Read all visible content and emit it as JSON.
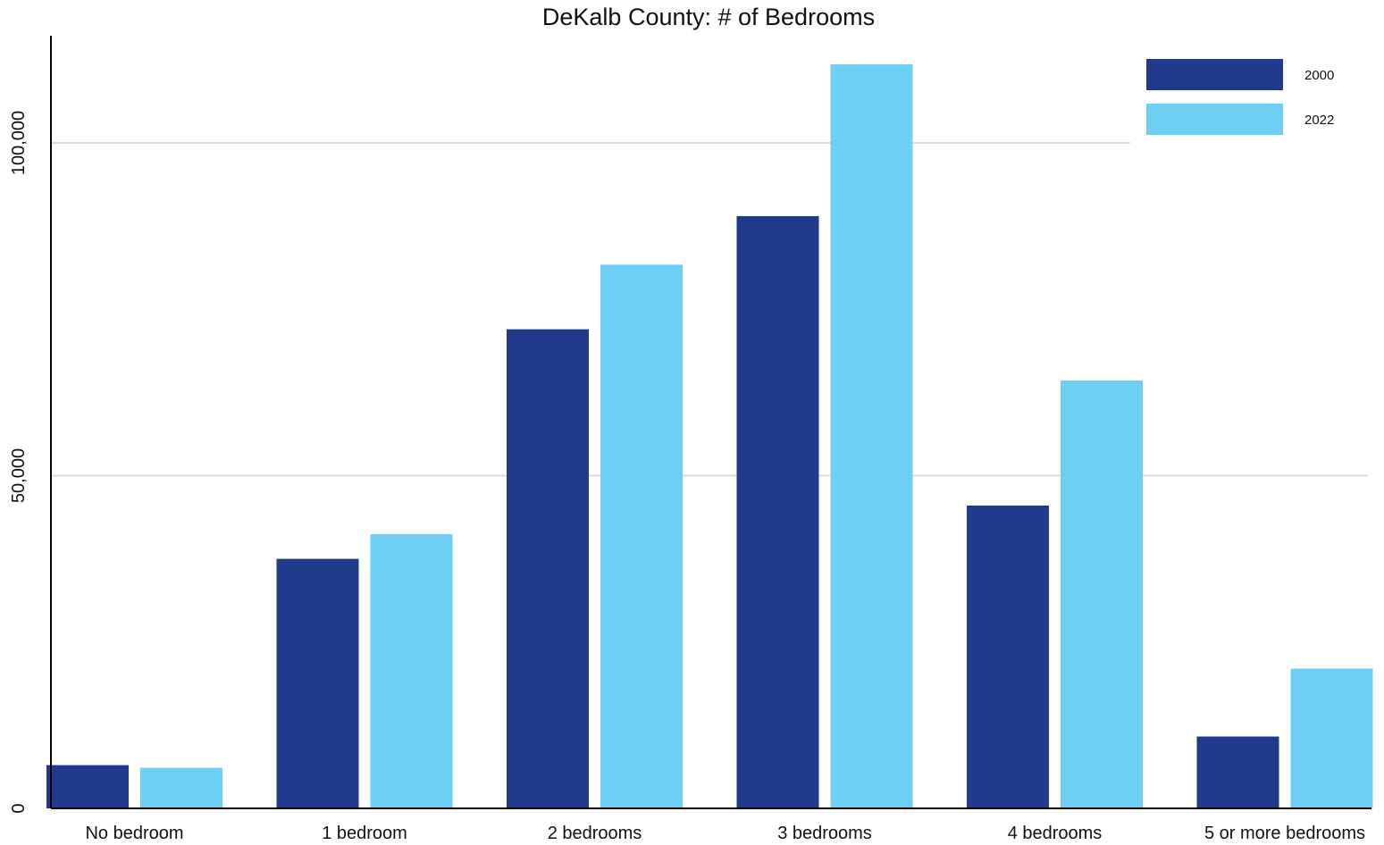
{
  "chart_data": {
    "type": "bar",
    "title": "DeKalb County: # of Bedrooms",
    "xlabel": "",
    "ylabel": "",
    "categories": [
      "No bedroom",
      "1 bedroom",
      "2 bedrooms",
      "3 bedrooms",
      "4 bedrooms",
      "5 or more bedrooms"
    ],
    "series": [
      {
        "name": "2000",
        "color": "#213a8c",
        "values": [
          6500,
          37500,
          72000,
          89000,
          45500,
          10800
        ]
      },
      {
        "name": "2022",
        "color": "#6dcff3",
        "values": [
          6100,
          41200,
          81700,
          111800,
          64300,
          21000
        ]
      }
    ],
    "ylim": [
      0,
      116000
    ],
    "yticks": [
      0,
      50000,
      100000
    ],
    "ytick_labels": [
      "0",
      "50,000",
      "100,000"
    ],
    "grid": true,
    "legend_position": "top-right"
  }
}
